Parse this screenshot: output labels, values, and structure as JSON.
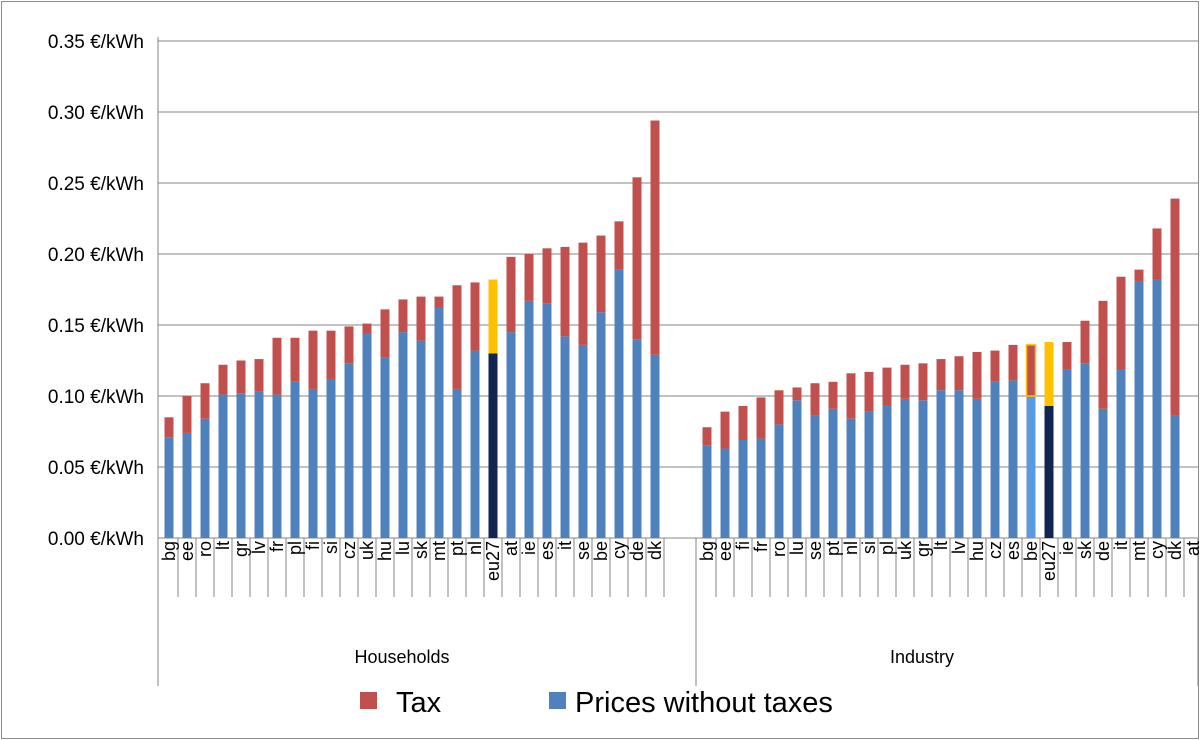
{
  "chart_data": {
    "type": "bar",
    "stacked": true,
    "y_unit_suffix": " €/kWh",
    "ylim": [
      0,
      0.35
    ],
    "y_ticks": [
      0.0,
      0.05,
      0.1,
      0.15,
      0.2,
      0.25,
      0.3,
      0.35
    ],
    "y_tick_labels": [
      "0.00 €/kWh",
      "0.05 €/kWh",
      "0.10 €/kWh",
      "0.15 €/kWh",
      "0.20 €/kWh",
      "0.25 €/kWh",
      "0.30 €/kWh",
      "0.35 €/kWh"
    ],
    "grid": true,
    "legend": {
      "placement": "bottom",
      "entries": [
        {
          "name": "Tax",
          "color": "#c0504d"
        },
        {
          "name": "Prices without taxes",
          "color": "#4f81bd"
        }
      ]
    },
    "colors": {
      "tax": "#c0504d",
      "base": "#4f81bd",
      "eu27_tax": "#ffc000",
      "eu27_base": "#10254f",
      "highlight_base": "#5b9ae0"
    },
    "groups": [
      {
        "label": "Households",
        "categories": [
          "bg",
          "ee",
          "ro",
          "lt",
          "gr",
          "lv",
          "fr",
          "pl",
          "fi",
          "si",
          "cz",
          "uk",
          "hu",
          "lu",
          "sk",
          "mt",
          "pt",
          "nl",
          "eu27",
          "at",
          "ie",
          "es",
          "it",
          "se",
          "be",
          "cy",
          "de",
          "dk"
        ],
        "base": [
          0.071,
          0.074,
          0.084,
          0.101,
          0.102,
          0.103,
          0.101,
          0.11,
          0.105,
          0.112,
          0.123,
          0.144,
          0.127,
          0.145,
          0.139,
          0.162,
          0.105,
          0.132,
          0.13,
          0.145,
          0.167,
          0.165,
          0.142,
          0.136,
          0.159,
          0.189,
          0.14,
          0.129
        ],
        "tax": [
          0.014,
          0.026,
          0.025,
          0.021,
          0.023,
          0.023,
          0.04,
          0.031,
          0.041,
          0.034,
          0.026,
          0.007,
          0.034,
          0.023,
          0.031,
          0.008,
          0.073,
          0.048,
          0.052,
          0.053,
          0.033,
          0.039,
          0.063,
          0.072,
          0.054,
          0.034,
          0.114,
          0.165
        ],
        "highlight": [
          "eu27"
        ]
      },
      {
        "label": "Industry",
        "categories": [
          "bg",
          "ee",
          "fi",
          "fr",
          "ro",
          "lu",
          "se",
          "pt",
          "nl",
          "si",
          "pl",
          "uk",
          "gr",
          "lt",
          "lv",
          "hu",
          "cz",
          "es",
          "be",
          "eu27",
          "ie",
          "sk",
          "de",
          "it",
          "mt",
          "cy",
          "dk",
          "at"
        ],
        "base": [
          0.065,
          0.063,
          0.069,
          0.07,
          0.08,
          0.097,
          0.086,
          0.091,
          0.084,
          0.089,
          0.093,
          0.098,
          0.097,
          0.104,
          0.104,
          0.098,
          0.11,
          0.111,
          0.1,
          0.093,
          0.119,
          0.123,
          0.091,
          0.119,
          0.181,
          0.182,
          0.086,
          null
        ],
        "tax": [
          0.013,
          0.026,
          0.024,
          0.029,
          0.024,
          0.009,
          0.023,
          0.019,
          0.032,
          0.028,
          0.027,
          0.024,
          0.026,
          0.022,
          0.024,
          0.033,
          0.022,
          0.025,
          0.036,
          0.045,
          0.019,
          0.03,
          0.076,
          0.065,
          0.008,
          0.036,
          0.153,
          null
        ],
        "highlight": [
          "be",
          "eu27"
        ]
      }
    ]
  }
}
